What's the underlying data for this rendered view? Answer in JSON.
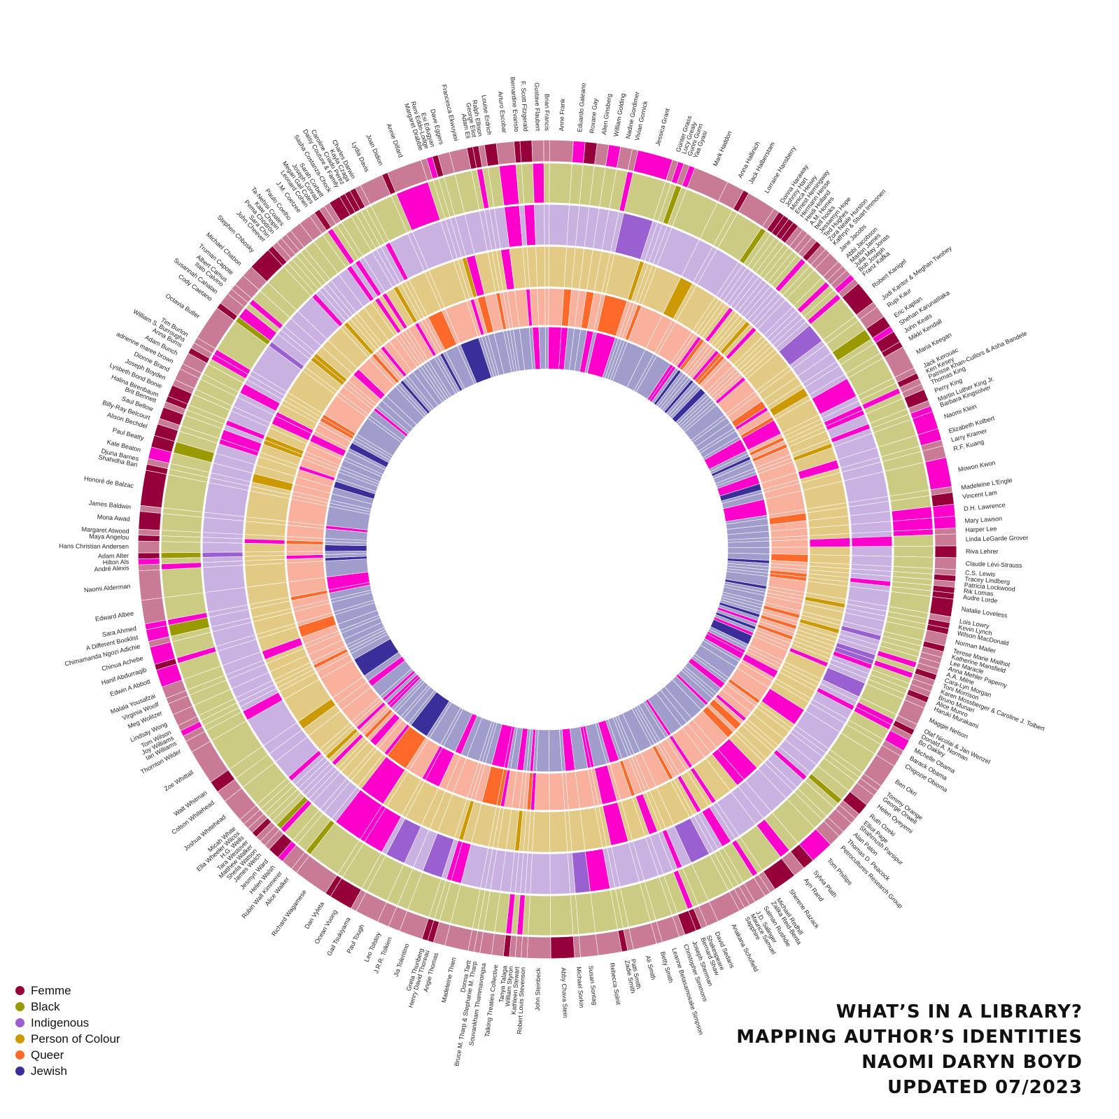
{
  "title_lines": [
    "WHAT’S IN A LIBRARY?",
    "MAPPING AUTHOR’S IDENTITIES",
    "NAOMI DARYN BOYD",
    "UPDATED 07/2023"
  ],
  "legend": [
    {
      "label": "Femme",
      "color": "#96003a"
    },
    {
      "label": "Black",
      "color": "#9a9a00"
    },
    {
      "label": "Indigenous",
      "color": "#9a5fd0"
    },
    {
      "label": "Person of Colour",
      "color": "#cc9900"
    },
    {
      "label": "Queer",
      "color": "#ff6a2a"
    },
    {
      "label": "Jewish",
      "color": "#3a2e9a"
    }
  ],
  "chart_data": {
    "type": "sunburst",
    "rings": [
      "Femme",
      "Black",
      "Indigenous",
      "Person of Colour",
      "Queer",
      "Jewish"
    ],
    "ring_colors": {
      "Femme": {
        "yes": "#96003a",
        "no": "#c97a94"
      },
      "Black": {
        "yes": "#9a9a00",
        "no": "#cbcb84"
      },
      "Indigenous": {
        "yes": "#9a5fd0",
        "no": "#c9b2e2"
      },
      "Person of Colour": {
        "yes": "#cc9900",
        "no": "#e3ca84"
      },
      "Queer": {
        "yes": "#ff6a2a",
        "no": "#f9b09c"
      },
      "Jewish": {
        "yes": "#3a2e9a",
        "no": "#a09ccb"
      }
    },
    "no_books_color": "#ff00cc",
    "authors": [
      "Margaret Atwood",
      "Mona Awad",
      "James Baldwin",
      "Honoré de Balzac",
      "Shahidha Bari",
      "Djuna Barnes",
      "Kate Beaton",
      "Paul Beatty",
      "Alison Bechdel",
      "Billy-Ray Belcourt",
      "Saul Bellow",
      "Brit Bennett",
      "Halina Birenbaum",
      "Lysbeth Bond Bonie",
      "Joseph Boyden",
      "Dionne Brand",
      "adrienne maree brown",
      "Adam Bunch",
      "Anna Burns",
      "William S. Burroughs",
      "Tim Burton",
      "Octavia Butler",
      "Cody Caetano",
      "Susannah Cahalan",
      "Italo Calvino",
      "Albert Camus",
      "Truman Capote",
      "Michael Chabon",
      "Stephen Chbosky",
      "John Cheever",
      "Sara Chin",
      "Pema Chödrön",
      "Kate Chopin",
      "Ta-Nehisi Coates",
      "Paulo Coelho",
      "J.M. Coetzee",
      "Leonard Cohen",
      "Megan Gail Coles",
      "Joseph Conrad",
      "Sarah Corbett",
      "Sasha Costanza-Chock",
      "Daisy Couture & Family",
      "Caroline Criado Perez",
      "Kayla Czaga",
      "Charles Darwin",
      "Lydia Davis",
      "Joan Didion",
      "Annie Dillard",
      "Margaret Drabble",
      "Reni Eddo-Lodge",
      "Esi Edugyan",
      "Dave Eggers",
      "Francesca Ekwuyasi",
      "Adam Eli",
      "George Eliot",
      "Ralph Ellison",
      "Louise Erdrich",
      "Arturo Escobar",
      "Bernardine Evaristo",
      "F. Scott Fitzgerald",
      "Gustave Flaubert",
      "Brian Francis",
      "Anne Frank",
      "Eduardo Galeano",
      "Roxane Gay",
      "Allen Ginsberg",
      "William Golding",
      "Nadine Gordimer",
      "Vivian Gornick",
      "Jessica Grant",
      "Günter Grass",
      "Lucy Grealy",
      "Gunni Gunn",
      "Yaa Gyasi",
      "Mark Haddon",
      "Anna Hallinich",
      "Jack Halberstam",
      "Lorraine Hansberry",
      "Donna Haraway",
      "Johnny Hart",
      "Monica Heisey",
      "Ernest Hemingway",
      "Hermann Hesse",
      "Heidi Holland",
      "A.M. Homes",
      "bell hooks",
      "Jessamyn Hope",
      "Ted Hughes",
      "Zora Neale Hurston",
      "Kathryn & Stuart Immonen",
      "Jane Jacobs",
      "Abbi Jacobson",
      "Marlon James",
      "Julia May Jonas",
      "Bob Joseph",
      "Franz Kafka",
      "Robert Kanigel",
      "Jodi Kantor & Meghan Twohey",
      "Rupi Kaur",
      "Eric Kaplan",
      "Shehan Karunatilaka",
      "John Keats",
      "Mikki Kendall",
      "Maria Keegan",
      "Jack Kerouac",
      "Ken Kesey",
      "Patrisse Khan-Cullors & Asha Bandele",
      "Thomas King",
      "Perry King",
      "Martin Luther King Jr.",
      "Barbara Kingsolver",
      "Naomi Klein",
      "Elizabeth Kolbert",
      "Larry Kramer",
      "R.F. Kuang",
      "Mowon Kwon",
      "Madeleine L'Engle",
      "Vincent Lam",
      "D.H. Lawrence",
      "Mary Lawson",
      "Harper Lee",
      "Linda LeGarde Grover",
      "Riva Lehrer",
      "Claude Lévi-Strauss",
      "C.S. Lewis",
      "Tracey Lindberg",
      "Patricia Lockwood",
      "Rik Lomas",
      "Audre Lorde",
      "Natalie Loveless",
      "Lois Lowry",
      "Kevin Lynch",
      "Wilson MacDonald",
      "Norman Mailer",
      "Terese Marie Mailhot",
      "Katherine Mansfield",
      "Lee Maracle",
      "Anna Mehler Paperny",
      "A.A. Milne",
      "Cara-Lyn Morgan",
      "Toni Morrison",
      "Karen Mossberger & Caroline J. Tolbert",
      "Bruno Munari",
      "Alice Munro",
      "Haruki Murakami",
      "Maggie Nelson",
      "Olaf Nicolai & Jan Wenzel",
      "Donald A. Norman",
      "Bo Oakley",
      "Michelle Obama",
      "Barack Obama",
      "Chigozie Obioma",
      "Ben Okri",
      "Tommy Orange",
      "George Orwell",
      "Helen Oyeyemi",
      "Ruth Ozeki",
      "Elliot Page",
      "Shahrnush Parsipur",
      "Alan Paton",
      "Thomas D. Peacock",
      "Petrocultures Research Group",
      "Tom Phillips",
      "Sylvia Plath",
      "Ayn Rand",
      "Sherene Razack",
      "Michael Redhill",
      "Zalika Reid-Benta",
      "Salman Rushdie",
      "J.D. Salinger",
      "Maurice Samuel",
      "Sapphire",
      "Anakana Schofield",
      "David Sedaris",
      "Shakespeare",
      "Bernard Shaw",
      "Joseph Sherman",
      "Christopher Simmons",
      "Leanne Betasamosake Simpson",
      "Betty Smith",
      "Ali Smith",
      "Patti Smith",
      "Zadie Smith",
      "Rebecca Solnit",
      "Susan Sontag",
      "Michael Sorkin",
      "Abby Chava Stein",
      "John Steinbeck",
      "Robert Louis Stevenson",
      "Kathleen Stewart",
      "William Styron",
      "Tanya Talaga",
      "Talking Treaties Collective",
      "Souvankham Thammavongsa",
      "Bruce M. Tharp & Stephanie M. Tharp",
      "Donna Tartt",
      "Madeleine Thien",
      "Angie Thomas",
      "Henry David Thoreau",
      "Greta Thunberg",
      "Jia Tolentino",
      "J.R.R. Tolkien",
      "Leo Tolstoy",
      "Paul Tough",
      "Gail Tsukiyama",
      "Ocean Vuong",
      "Dan Vyleta",
      "Richard Wagamese",
      "Alice Walker",
      "Robin Wall Kimmerer",
      "Helen Walsh",
      "Jesmyn Ward",
      "James Welch",
      "Sheila Watson",
      "Matthew Walker",
      "Tara Westover",
      "H.G. Wells",
      "Ella Wheeler Wilcox",
      "Micah White",
      "Joshua Whitehead",
      "Colson Whitehead",
      "Walt Whitman",
      "Zoe Whittall",
      "Thornton Wilder",
      "Ian Williams",
      "Joy Williams",
      "Tom Wilson",
      "Lindsay Wong",
      "Meg Wolitzer",
      "Virginia Woolf",
      "Malala Yousafzai",
      "Edwin A Abbott",
      "Hanif Abdurraqib",
      "Chinua Achebe",
      "Chimamanda Ngozi Adichie",
      "A Different Booklist",
      "Sara Ahmed",
      "Edward Albee",
      "Naomi Alderman",
      "André Alexis",
      "Hilton Als",
      "Adam Alter",
      "Hans Christian Andersen",
      "Maya Angelou"
    ]
  }
}
